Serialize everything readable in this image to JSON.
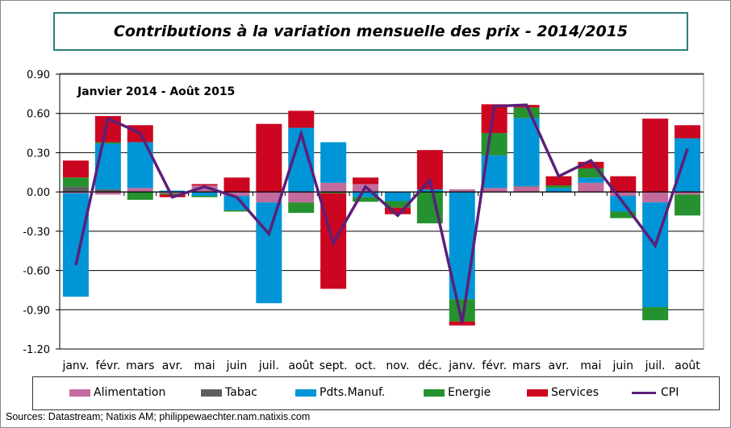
{
  "chart_data": {
    "type": "bar",
    "stacked": true,
    "title": "Contributions à la variation mensuelle des prix - 2014/2015",
    "annotation": "Janvier 2014 - Août 2015",
    "categories": [
      "janv.",
      "févr.",
      "mars",
      "avr.",
      "mai",
      "juin",
      "juil.",
      "août",
      "sept.",
      "oct.",
      "nov.",
      "déc.",
      "janv.",
      "févr.",
      "mars",
      "avr.",
      "mai",
      "juin",
      "juil.",
      "août"
    ],
    "ylim": [
      -1.2,
      0.9
    ],
    "yticks": [
      "0.90",
      "0.60",
      "0.30",
      "0.00",
      "-0.30",
      "-0.60",
      "-0.90",
      "-1.20"
    ],
    "ytick_values": [
      0.9,
      0.6,
      0.3,
      0.0,
      -0.3,
      -0.6,
      -0.9,
      -1.2
    ],
    "grid": true,
    "legend_position": "bottom",
    "series": [
      {
        "name": "Alimentation",
        "color": "#c36b9c",
        "values": [
          -0.01,
          -0.02,
          0.03,
          -0.01,
          0.05,
          -0.03,
          -0.08,
          -0.08,
          0.07,
          0.06,
          0.0,
          0.0,
          0.02,
          0.03,
          0.04,
          0.0,
          0.07,
          -0.03,
          -0.08,
          -0.02
        ]
      },
      {
        "name": "Tabac",
        "color": "#5f5f5f",
        "values": [
          0.04,
          0.02,
          0.0,
          0.0,
          0.0,
          0.0,
          0.0,
          0.0,
          0.0,
          0.0,
          0.0,
          0.0,
          0.0,
          0.0,
          0.005,
          0.0,
          0.0,
          0.0,
          0.0,
          0.0
        ]
      },
      {
        "name": "Pdts.Manuf.",
        "color": "#0095d6",
        "values": [
          -0.79,
          0.35,
          0.35,
          0.01,
          -0.03,
          -0.11,
          -0.77,
          0.49,
          0.31,
          -0.04,
          -0.07,
          0.02,
          -0.82,
          0.25,
          0.52,
          0.03,
          0.04,
          -0.12,
          -0.8,
          0.41
        ]
      },
      {
        "name": "Energie",
        "color": "#25912f",
        "values": [
          0.07,
          0.01,
          -0.06,
          -0.01,
          -0.01,
          -0.01,
          0.0,
          -0.08,
          -0.01,
          -0.035,
          -0.05,
          -0.24,
          -0.17,
          0.17,
          0.08,
          0.02,
          0.07,
          -0.05,
          -0.1,
          -0.16
        ]
      },
      {
        "name": "Services",
        "color": "#cc0620",
        "values": [
          0.13,
          0.2,
          0.13,
          -0.02,
          0.01,
          0.11,
          0.52,
          0.13,
          -0.73,
          0.05,
          -0.05,
          0.3,
          -0.03,
          0.22,
          0.02,
          0.07,
          0.05,
          0.12,
          0.56,
          0.1
        ]
      }
    ],
    "line_series": {
      "name": "CPI",
      "color": "#5b1f7a",
      "values": [
        -0.56,
        0.56,
        0.45,
        -0.04,
        0.04,
        -0.04,
        -0.32,
        0.445,
        -0.39,
        0.04,
        -0.18,
        0.09,
        -1.0,
        0.655,
        0.665,
        0.12,
        0.24,
        -0.08,
        -0.41,
        0.33
      ]
    }
  },
  "sources": "Sources: Datastream; Natixis AM; philippewaechter.nam.natixis.com"
}
